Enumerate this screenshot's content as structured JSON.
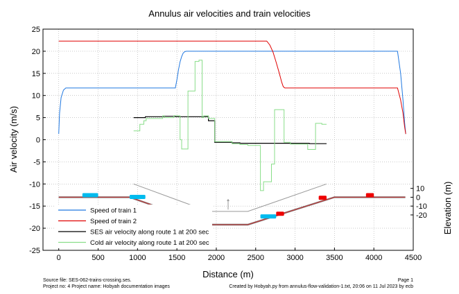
{
  "chart_data": {
    "type": "line",
    "title": "Annulus air velocities and train velocities",
    "xlabel": "Distance (m)",
    "ylabel": "Air velocity (m/s)",
    "y2label": "Elevation (m)",
    "xlim": [
      -200,
      4500
    ],
    "ylim": [
      -25,
      25
    ],
    "y2lim": [
      -60,
      190
    ],
    "x_ticks": [
      "0",
      "500",
      "1000",
      "1500",
      "2000",
      "2500",
      "3000",
      "3500",
      "4000",
      "4500"
    ],
    "y_ticks": [
      "-25",
      "-20",
      "-15",
      "-10",
      "-5",
      "0",
      "5",
      "10",
      "15",
      "20",
      "25"
    ],
    "y2_ticks": [
      "-20",
      "-10",
      "0",
      "10"
    ],
    "grid": true,
    "legend_position": "bottom-left",
    "series": [
      {
        "name": "Speed of train 1",
        "color": "#1f77e0",
        "x": [
          0,
          10,
          30,
          60,
          90,
          120,
          1480,
          1500,
          1520,
          1540,
          1560,
          1580,
          1600,
          1620,
          4300,
          4340,
          4370,
          4390,
          4405
        ],
        "y": [
          1.3,
          6,
          9.5,
          11.2,
          11.7,
          11.7,
          11.7,
          13.5,
          15.8,
          17.6,
          18.8,
          19.6,
          19.9,
          20,
          20,
          15,
          9,
          4,
          1.3
        ]
      },
      {
        "name": "Speed of train 2",
        "color": "#e00000",
        "x": [
          0,
          2640,
          2680,
          2720,
          2760,
          2800,
          2830,
          2850,
          2870,
          4300,
          4340,
          4370,
          4390,
          4405
        ],
        "y": [
          22.3,
          22.3,
          21.4,
          19.8,
          17.5,
          15,
          13,
          12,
          11.7,
          11.7,
          9,
          6,
          3,
          1.3
        ]
      },
      {
        "name": "SES air velocity along route 1 at 200 sec",
        "color": "#000000",
        "x": [
          950,
          1100,
          1100,
          1340,
          1340,
          1480,
          1480,
          1900,
          1900,
          1980,
          1980,
          2200,
          2200,
          2300,
          2300,
          3180,
          3180,
          3400
        ],
        "y": [
          5.0,
          5.0,
          5.2,
          5.2,
          5.3,
          5.3,
          5.2,
          5.2,
          4.3,
          4.3,
          -0.6,
          -0.6,
          -0.7,
          -0.7,
          -0.8,
          -0.8,
          -0.9,
          -0.9
        ]
      },
      {
        "name": "Cold air velocity along route 1 at 200 sec",
        "color": "#88dd88",
        "x": [
          950,
          1030,
          1030,
          1080,
          1080,
          1110,
          1110,
          1320,
          1320,
          1340,
          1340,
          1460,
          1460,
          1540,
          1540,
          1560,
          1560,
          1640,
          1640,
          1730,
          1730,
          1780,
          1780,
          1820,
          1820,
          1840,
          1840,
          1900,
          1900,
          1980,
          1980,
          2200,
          2200,
          2300,
          2300,
          2400,
          2400,
          2560,
          2560,
          2600,
          2600,
          2700,
          2700,
          2740,
          2740,
          2860,
          2860,
          2940,
          2940,
          3160,
          3160,
          3260,
          3260,
          3340,
          3340,
          3400
        ],
        "y": [
          2.0,
          2.0,
          3.5,
          3.5,
          4.3,
          4.3,
          4.8,
          4.8,
          5.4,
          5.4,
          5.0,
          5.0,
          5.4,
          5.4,
          0.0,
          0.0,
          -2.1,
          -2.1,
          11.0,
          11.0,
          17.7,
          17.7,
          18.0,
          18.0,
          5.0,
          5.0,
          5.4,
          5.4,
          4.8,
          4.8,
          -0.4,
          -0.4,
          -0.9,
          -0.9,
          -1.1,
          -1.1,
          -1.3,
          -1.3,
          -11.5,
          -11.5,
          -9.5,
          -9.5,
          -5.5,
          -5.5,
          6.8,
          6.8,
          -0.6,
          -0.6,
          -1.0,
          -1.0,
          -2.2,
          -2.2,
          3.7,
          3.7,
          3.5,
          3.5
        ]
      }
    ],
    "elevation_profile": {
      "name": "Route elevation",
      "color": "#cc3333",
      "axis": "y2",
      "x": [
        0,
        900,
        1900,
        2400,
        3500,
        4400
      ],
      "y": [
        0,
        0,
        -31,
        -31,
        0,
        0
      ]
    },
    "tunnel_outline": {
      "color": "#999999",
      "axis": "y2",
      "x": [
        950,
        1900,
        2400,
        3400
      ],
      "y": [
        15,
        -16,
        -16,
        15
      ]
    },
    "shaft_marker": {
      "color": "#999999",
      "axis": "y2",
      "x": 2150,
      "y": [
        -14,
        -2
      ]
    },
    "train_blocks": [
      {
        "train": 1,
        "color": "#00bbee",
        "x_start": 300,
        "x_end": 500,
        "elev": 0
      },
      {
        "train": 1,
        "color": "#00bbee",
        "x_start": 900,
        "x_end": 1100,
        "elev": -2
      },
      {
        "train": 1,
        "color": "#00bbee",
        "x_start": 1560,
        "x_end": 1760,
        "elev": -19
      },
      {
        "train": 1,
        "color": "#00bbee",
        "x_start": 2560,
        "x_end": 2760,
        "elev": -24
      },
      {
        "train": 2,
        "color": "#ee0000",
        "x_start": 1760,
        "x_end": 1830,
        "elev": -22
      },
      {
        "train": 2,
        "color": "#ee0000",
        "x_start": 2760,
        "x_end": 2860,
        "elev": -21
      },
      {
        "train": 2,
        "color": "#ee0000",
        "x_start": 3300,
        "x_end": 3400,
        "elev": -3
      },
      {
        "train": 2,
        "color": "#ee0000",
        "x_start": 3900,
        "x_end": 4000,
        "elev": 0
      }
    ],
    "footer": {
      "source": "Source file: SES-062-trains-crossing.ses.",
      "project": "Project no: 4    Project name: Hobyah documentation images",
      "page": "Page 1",
      "created": "Created by Hobyah.py from annulus-flow-validation-1.txt, 20:06 on 11 Jul 2023 by ecb"
    }
  }
}
